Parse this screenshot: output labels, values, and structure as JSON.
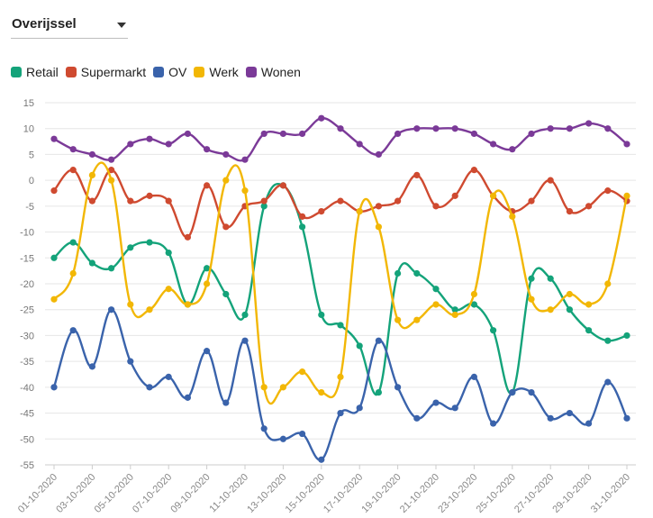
{
  "region_select": {
    "value": "Overijssel",
    "icon": "caret-down-icon"
  },
  "colors": {
    "Retail": "#14a37a",
    "Supermarkt": "#cf4a30",
    "OV": "#3a63ab",
    "Werk": "#f2b705",
    "Wonen": "#7b3a98"
  },
  "chart_data": {
    "type": "line",
    "ylim": [
      -55,
      15
    ],
    "yticks": [
      15,
      10,
      5,
      0,
      -5,
      -10,
      -15,
      -20,
      -25,
      -30,
      -35,
      -40,
      -45,
      -50,
      -55
    ],
    "grid": true,
    "legend": "top-left",
    "x": [
      "01-10-2020",
      "02-10-2020",
      "03-10-2020",
      "04-10-2020",
      "05-10-2020",
      "06-10-2020",
      "07-10-2020",
      "08-10-2020",
      "09-10-2020",
      "10-10-2020",
      "11-10-2020",
      "12-10-2020",
      "13-10-2020",
      "14-10-2020",
      "15-10-2020",
      "16-10-2020",
      "17-10-2020",
      "18-10-2020",
      "19-10-2020",
      "20-10-2020",
      "21-10-2020",
      "22-10-2020",
      "23-10-2020",
      "24-10-2020",
      "25-10-2020",
      "26-10-2020",
      "27-10-2020",
      "28-10-2020",
      "29-10-2020",
      "30-10-2020",
      "31-10-2020"
    ],
    "xticklabels": [
      "01-10-2020",
      "03-10-2020",
      "05-10-2020",
      "07-10-2020",
      "09-10-2020",
      "11-10-2020",
      "13-10-2020",
      "15-10-2020",
      "17-10-2020",
      "19-10-2020",
      "21-10-2020",
      "23-10-2020",
      "25-10-2020",
      "27-10-2020",
      "29-10-2020",
      "31-10-2020"
    ],
    "series": [
      {
        "name": "Retail",
        "values": [
          -15,
          -12,
          -16,
          -17,
          -13,
          -12,
          -14,
          -24,
          -17,
          -22,
          -26,
          -5,
          -1,
          -9,
          -26,
          -28,
          -32,
          -41,
          -18,
          -18,
          -21,
          -25,
          -24,
          -29,
          -41,
          -19,
          -19,
          -25,
          -29,
          -31,
          -30
        ]
      },
      {
        "name": "Supermarkt",
        "values": [
          -2,
          2,
          -4,
          2,
          -4,
          -3,
          -4,
          -11,
          -1,
          -9,
          -5,
          -4,
          -1,
          -7,
          -6,
          -4,
          -6,
          -5,
          -4,
          1,
          -5,
          -3,
          2,
          -3,
          -6,
          -4,
          0,
          -6,
          -5,
          -2,
          -4
        ]
      },
      {
        "name": "OV",
        "values": [
          -40,
          -29,
          -36,
          -25,
          -35,
          -40,
          -38,
          -42,
          -33,
          -43,
          -31,
          -48,
          -50,
          -49,
          -54,
          -45,
          -44,
          -31,
          -40,
          -46,
          -43,
          -44,
          -38,
          -47,
          -41,
          -41,
          -46,
          -45,
          -47,
          -39,
          -46
        ]
      },
      {
        "name": "Werk",
        "values": [
          -23,
          -18,
          1,
          0,
          -24,
          -25,
          -21,
          -24,
          -20,
          0,
          -2,
          -40,
          -40,
          -37,
          -41,
          -38,
          -6,
          -9,
          -27,
          -27,
          -24,
          -26,
          -22,
          -3,
          -7,
          -23,
          -25,
          -22,
          -24,
          -20,
          -3
        ]
      },
      {
        "name": "Wonen",
        "values": [
          8,
          6,
          5,
          4,
          7,
          8,
          7,
          9,
          6,
          5,
          4,
          9,
          9,
          9,
          12,
          10,
          7,
          5,
          9,
          10,
          10,
          10,
          9,
          7,
          6,
          9,
          10,
          10,
          11,
          10,
          7
        ]
      }
    ]
  }
}
